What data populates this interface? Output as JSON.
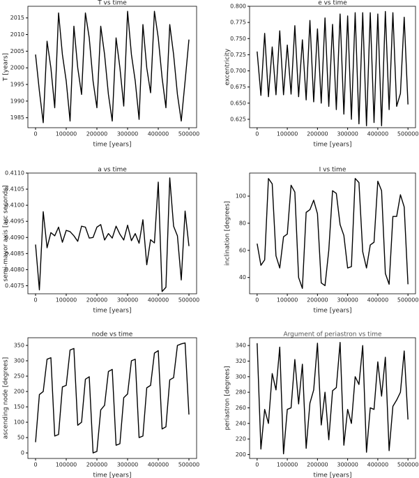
{
  "chart_data": [
    {
      "type": "line",
      "title": "T vs time",
      "xlabel": "time [years]",
      "ylabel": "T [years]",
      "color": "#000000",
      "x": [
        0,
        12500,
        25000,
        37500,
        50000,
        62500,
        75000,
        87500,
        100000,
        112500,
        125000,
        137500,
        150000,
        162500,
        175000,
        187500,
        200000,
        212500,
        225000,
        237500,
        250000,
        262500,
        275000,
        287500,
        300000,
        312500,
        325000,
        337500,
        350000,
        362500,
        375000,
        387500,
        400000,
        412500,
        425000,
        437500,
        450000,
        462500,
        475000,
        487500,
        500000
      ],
      "values": [
        2004,
        1993,
        1983.5,
        2008,
        2000,
        1988,
        2016.5,
        2004,
        1996,
        1984,
        2012.5,
        2000,
        1992,
        2016.5,
        2009,
        1996,
        1988,
        2012.5,
        2004,
        1992,
        1984,
        2009,
        2000,
        1988.5,
        2017,
        2004,
        1996,
        1984.5,
        2013,
        2000,
        1992.5,
        2017,
        2009,
        1997,
        1988,
        2013,
        2004,
        1992,
        1984,
        1996,
        2008.5
      ],
      "xlim": [
        -25000,
        525000
      ],
      "xticks": [
        0,
        100000,
        200000,
        300000,
        400000,
        500000
      ],
      "ylim": [
        1982,
        2018.5
      ],
      "yticks": [
        1985,
        1990,
        1995,
        2000,
        2005,
        2010,
        2015
      ]
    },
    {
      "type": "line",
      "title": "e vs time",
      "xlabel": "time [years]",
      "ylabel": "excentricity",
      "color": "#000000",
      "x": [
        0,
        12500,
        25000,
        37500,
        50000,
        62500,
        75000,
        87500,
        100000,
        112500,
        125000,
        137500,
        150000,
        162500,
        175000,
        187500,
        200000,
        212500,
        225000,
        237500,
        250000,
        262500,
        275000,
        287500,
        300000,
        312500,
        325000,
        337500,
        350000,
        362500,
        375000,
        387500,
        400000,
        412500,
        425000,
        437500,
        450000,
        462500,
        475000,
        487500,
        500000
      ],
      "values": [
        0.73,
        0.662,
        0.758,
        0.66,
        0.737,
        0.663,
        0.762,
        0.663,
        0.74,
        0.664,
        0.77,
        0.66,
        0.748,
        0.655,
        0.778,
        0.652,
        0.765,
        0.65,
        0.782,
        0.645,
        0.772,
        0.64,
        0.788,
        0.633,
        0.785,
        0.625,
        0.79,
        0.618,
        0.79,
        0.615,
        0.79,
        0.62,
        0.788,
        0.615,
        0.792,
        0.64,
        0.79,
        0.645,
        0.665,
        0.783,
        0.648
      ],
      "xlim": [
        -25000,
        525000
      ],
      "xticks": [
        0,
        100000,
        200000,
        300000,
        400000,
        500000
      ],
      "ylim": [
        0.612,
        0.8
      ],
      "yticks": [
        0.625,
        {
          "value": 0.65,
          "label": "0.650"
        },
        0.675,
        {
          "value": 0.7,
          "label": "0.700"
        },
        0.725,
        {
          "value": 0.75,
          "label": "0.750"
        },
        0.775,
        {
          "value": 0.8,
          "label": "0.800"
        }
      ]
    },
    {
      "type": "line",
      "title": "a vs time",
      "xlabel": "time [years]",
      "ylabel": "semi-mayor axis [arc seconds]",
      "color": "#000000",
      "x": [
        0,
        12500,
        25000,
        37500,
        50000,
        62500,
        75000,
        87500,
        100000,
        112500,
        125000,
        137500,
        150000,
        162500,
        175000,
        187500,
        200000,
        212500,
        225000,
        237500,
        250000,
        262500,
        275000,
        287500,
        300000,
        312500,
        325000,
        337500,
        350000,
        362500,
        375000,
        387500,
        400000,
        412500,
        425000,
        437500,
        450000,
        462500,
        475000,
        487500,
        500000
      ],
      "values": [
        0.40878,
        0.40737,
        0.4098,
        0.40868,
        0.40915,
        0.40905,
        0.40932,
        0.40885,
        0.40922,
        0.40918,
        0.40905,
        0.40888,
        0.40935,
        0.40932,
        0.40898,
        0.409,
        0.40932,
        0.4094,
        0.40892,
        0.40912,
        0.40898,
        0.40935,
        0.4091,
        0.40892,
        0.40938,
        0.4089,
        0.40912,
        0.40882,
        0.40955,
        0.40815,
        0.40893,
        0.40883,
        0.41072,
        0.40732,
        0.40745,
        0.41085,
        0.40935,
        0.40905,
        0.40768,
        0.40982,
        0.40873
      ],
      "xlim": [
        -25000,
        525000
      ],
      "xticks": [
        0,
        100000,
        200000,
        300000,
        400000,
        500000
      ],
      "ylim": [
        0.40725,
        0.411
      ],
      "yticks": [
        0.4075,
        {
          "value": 0.408,
          "label": "0.4080"
        },
        0.4085,
        {
          "value": 0.409,
          "label": "0.4090"
        },
        0.4095,
        {
          "value": 0.41,
          "label": "0.4100"
        },
        0.4105,
        {
          "value": 0.411,
          "label": "0.4110"
        }
      ]
    },
    {
      "type": "line",
      "title": "I vs time",
      "xlabel": "time [years]",
      "ylabel": "inclination [degrees]",
      "color": "#000000",
      "x": [
        0,
        12500,
        25000,
        37500,
        50000,
        62500,
        75000,
        87500,
        100000,
        112500,
        125000,
        137500,
        150000,
        162500,
        175000,
        187500,
        200000,
        212500,
        225000,
        237500,
        250000,
        262500,
        275000,
        287500,
        300000,
        312500,
        325000,
        337500,
        350000,
        362500,
        375000,
        387500,
        400000,
        412500,
        425000,
        437500,
        450000,
        462500,
        475000,
        487500,
        500000
      ],
      "values": [
        65,
        49,
        53,
        113,
        109,
        56,
        47,
        70,
        72,
        108,
        103,
        40,
        32,
        88,
        90,
        97,
        87,
        36,
        34,
        60,
        104,
        102,
        79,
        71,
        47,
        48,
        113,
        110,
        59,
        47,
        64,
        66,
        111,
        104,
        43,
        35,
        85,
        85,
        101,
        92,
        35
      ],
      "xlim": [
        -25000,
        525000
      ],
      "xticks": [
        0,
        100000,
        200000,
        300000,
        400000,
        500000
      ],
      "ylim": [
        28,
        117
      ],
      "yticks": [
        40,
        60,
        80,
        100
      ]
    },
    {
      "type": "line",
      "title": "node vs time",
      "xlabel": "time [years]",
      "ylabel": "ascending node [degrees]",
      "color": "#000000",
      "x": [
        0,
        12500,
        25000,
        37500,
        50000,
        62500,
        75000,
        87500,
        100000,
        112500,
        125000,
        137500,
        150000,
        162500,
        175000,
        187500,
        200000,
        212500,
        225000,
        237500,
        250000,
        262500,
        275000,
        287500,
        300000,
        312500,
        325000,
        337500,
        350000,
        362500,
        375000,
        387500,
        400000,
        412500,
        425000,
        437500,
        450000,
        462500,
        475000,
        487500,
        500000
      ],
      "values": [
        35,
        190,
        200,
        305,
        310,
        55,
        60,
        215,
        220,
        335,
        340,
        90,
        100,
        240,
        248,
        0,
        5,
        140,
        155,
        265,
        272,
        25,
        30,
        180,
        192,
        300,
        305,
        50,
        55,
        212,
        220,
        325,
        333,
        78,
        85,
        238,
        245,
        350,
        355,
        358,
        125
      ],
      "xlim": [
        -25000,
        525000
      ],
      "xticks": [
        0,
        100000,
        200000,
        300000,
        400000,
        500000
      ],
      "ylim": [
        -18,
        375
      ],
      "yticks": [
        0,
        50,
        100,
        150,
        200,
        250,
        300,
        350
      ]
    },
    {
      "type": "line",
      "title": "Argument of periastron vs time",
      "xlabel": "time [years]",
      "ylabel": "periastron [degrees]",
      "color": "#000000",
      "x": [
        0,
        12500,
        25000,
        37500,
        50000,
        62500,
        75000,
        87500,
        100000,
        112500,
        125000,
        137500,
        150000,
        162500,
        175000,
        187500,
        200000,
        212500,
        225000,
        237500,
        250000,
        262500,
        275000,
        287500,
        300000,
        312500,
        325000,
        337500,
        350000,
        362500,
        375000,
        387500,
        400000,
        412500,
        425000,
        437500,
        450000,
        462500,
        475000,
        487500,
        500000
      ],
      "values": [
        343,
        207,
        258,
        240,
        304,
        283,
        338,
        201,
        258,
        260,
        322,
        265,
        316,
        208,
        266,
        283,
        343,
        238,
        280,
        219,
        282,
        286,
        344,
        212,
        258,
        240,
        300,
        290,
        340,
        203,
        260,
        258,
        319,
        275,
        325,
        205,
        262,
        270,
        280,
        333,
        245
      ],
      "xlim": [
        -25000,
        525000
      ],
      "xticks": [
        0,
        100000,
        200000,
        300000,
        400000,
        500000
      ],
      "ylim": [
        195,
        350
      ],
      "yticks": [
        200,
        220,
        240,
        260,
        280,
        300,
        320,
        340
      ]
    }
  ]
}
